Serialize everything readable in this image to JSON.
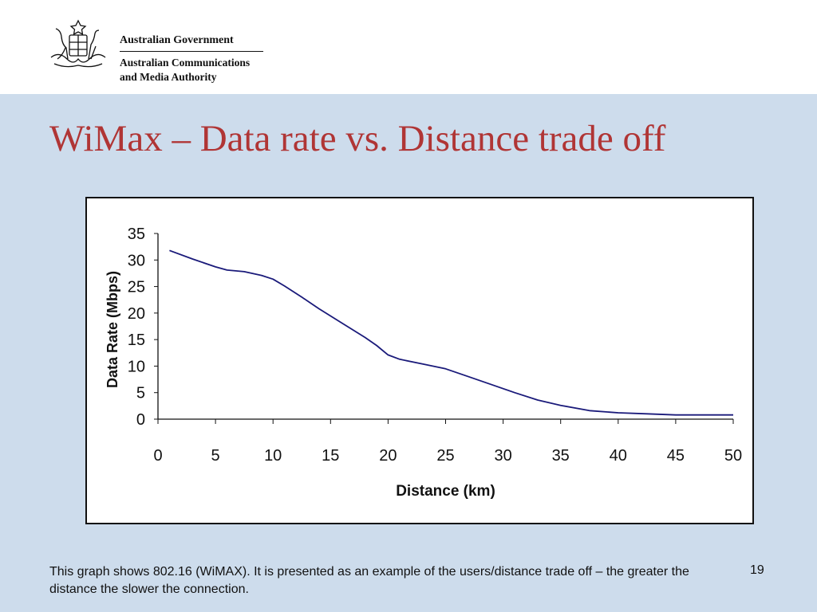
{
  "header": {
    "government": "Australian Government",
    "agency_line1": "Australian Communications",
    "agency_line2": "and Media Authority",
    "crest_icon": "coat-of-arms-icon"
  },
  "slide": {
    "title": "WiMax – Data rate vs. Distance trade off",
    "caption": "This graph shows 802.16 (WiMAX). It is presented as an example of the users/distance trade off – the greater the distance the slower the connection.",
    "page_number": "19"
  },
  "colors": {
    "title": "#b03535",
    "slide_background": "#cddcec",
    "series_line": "#1a1a7a"
  },
  "chart_data": {
    "type": "line",
    "title": "",
    "xlabel": "Distance (km)",
    "ylabel": "Data Rate (Mbps)",
    "xlim": [
      0,
      50
    ],
    "ylim": [
      0,
      35
    ],
    "xticks": [
      0,
      5,
      10,
      15,
      20,
      25,
      30,
      35,
      40,
      45,
      50
    ],
    "yticks": [
      0,
      5,
      10,
      15,
      20,
      25,
      30,
      35
    ],
    "grid": false,
    "legend": "none",
    "series": [
      {
        "x": [
          1,
          3,
          5,
          6,
          7.5,
          9,
          10,
          11,
          12.5,
          14,
          16,
          18,
          19,
          20,
          21,
          23,
          25,
          27,
          29,
          31,
          33,
          35,
          37.5,
          40,
          42.5,
          45,
          47.5,
          50
        ],
        "y": [
          31.8,
          30.2,
          28.7,
          28.1,
          27.8,
          27.1,
          26.4,
          25.1,
          23.0,
          20.8,
          18.1,
          15.4,
          13.9,
          12.1,
          11.3,
          10.4,
          9.5,
          8.0,
          6.5,
          5.0,
          3.6,
          2.6,
          1.6,
          1.2,
          1.0,
          0.8,
          0.8,
          0.8
        ]
      }
    ]
  }
}
